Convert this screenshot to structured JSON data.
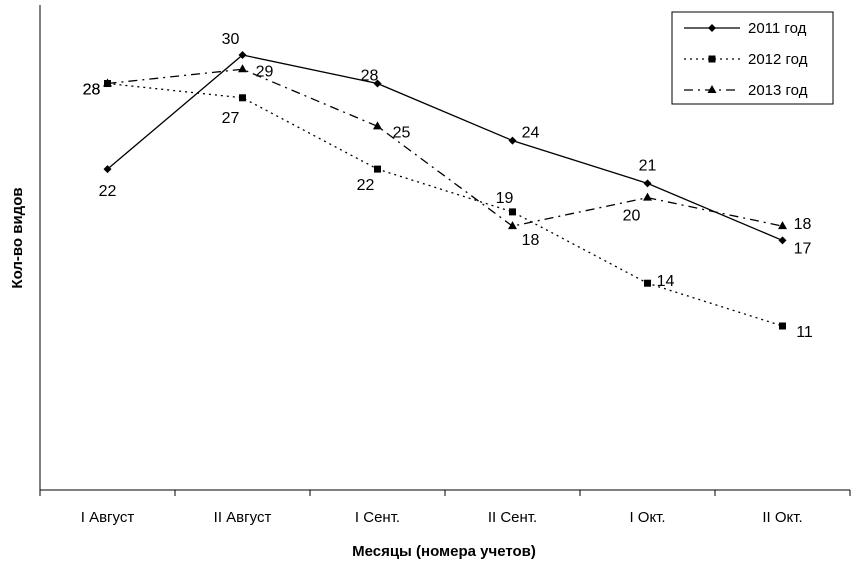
{
  "chart_data": {
    "type": "line",
    "title": "",
    "xlabel": "Месяцы (номера учетов)",
    "ylabel": "Кол-во видов",
    "categories": [
      "I Август",
      "II Август",
      "I Сент.",
      "II Сент.",
      "I Окт.",
      "II Окт."
    ],
    "ylim": [
      0,
      33
    ],
    "grid": false,
    "legend_position": "top-right",
    "series": [
      {
        "name": "2011 год",
        "values": [
          22,
          30,
          28,
          24,
          21,
          17
        ],
        "style": "solid",
        "marker": "diamond",
        "color": "#000000"
      },
      {
        "name": "2012 год",
        "values": [
          28,
          27,
          22,
          19,
          14,
          11
        ],
        "style": "dotted",
        "marker": "square",
        "color": "#000000"
      },
      {
        "name": "2013 год",
        "values": [
          28,
          29,
          25,
          18,
          20,
          18
        ],
        "style": "dashdot",
        "marker": "triangle",
        "color": "#000000"
      }
    ]
  }
}
